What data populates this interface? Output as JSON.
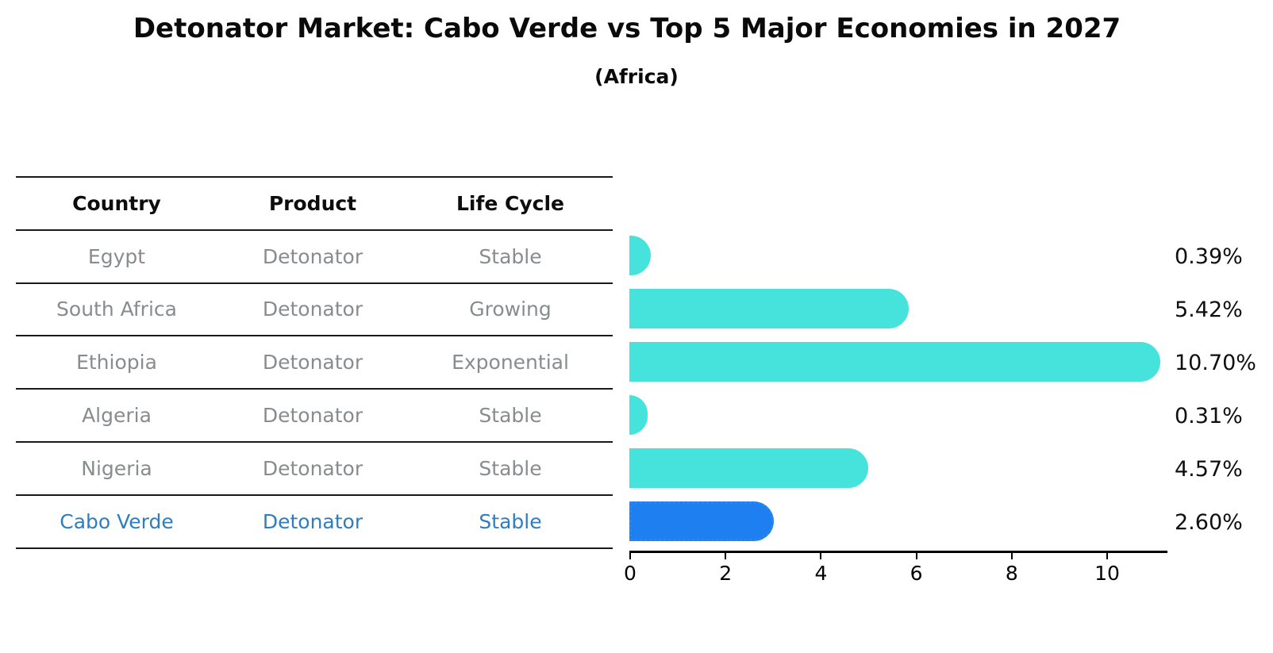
{
  "title": "Detonator Market: Cabo Verde vs Top 5 Major Economies in 2027",
  "subtitle": "(Africa)",
  "table": {
    "headers": [
      "Country",
      "Product",
      "Life Cycle"
    ],
    "rows": [
      {
        "country": "Egypt",
        "product": "Detonator",
        "life_cycle": "Stable",
        "highlight": false
      },
      {
        "country": "South Africa",
        "product": "Detonator",
        "life_cycle": "Growing",
        "highlight": false
      },
      {
        "country": "Ethiopia",
        "product": "Detonator",
        "life_cycle": "Exponential",
        "highlight": false
      },
      {
        "country": "Algeria",
        "product": "Detonator",
        "life_cycle": "Stable",
        "highlight": false
      },
      {
        "country": "Nigeria",
        "product": "Detonator",
        "life_cycle": "Stable",
        "highlight": false
      },
      {
        "country": "Cabo Verde",
        "product": "Detonator",
        "life_cycle": "Stable",
        "highlight": true
      }
    ]
  },
  "chart_data": {
    "type": "bar",
    "orientation": "horizontal",
    "title": "Detonator Market: Cabo Verde vs Top 5 Major Economies in 2027",
    "subtitle": "(Africa)",
    "categories": [
      "Egypt",
      "South Africa",
      "Ethiopia",
      "Algeria",
      "Nigeria",
      "Cabo Verde"
    ],
    "values": [
      0.39,
      5.42,
      10.7,
      0.31,
      4.57,
      2.6
    ],
    "value_labels": [
      "0.39%",
      "5.42%",
      "10.70%",
      "0.31%",
      "4.57%",
      "2.60%"
    ],
    "highlight_index": 5,
    "xticks": [
      0,
      2,
      4,
      6,
      8,
      10
    ],
    "xlim": [
      0,
      11.3
    ],
    "grid": false,
    "legend": false,
    "xlabel": "",
    "ylabel": ""
  },
  "colors": {
    "bar": "#46E3DC",
    "highlight_bar": "#1E80F0",
    "highlight_bar_edge": "#2B86F0",
    "highlight_text": "#2E7EBF",
    "gray_text": "#898C8E"
  }
}
